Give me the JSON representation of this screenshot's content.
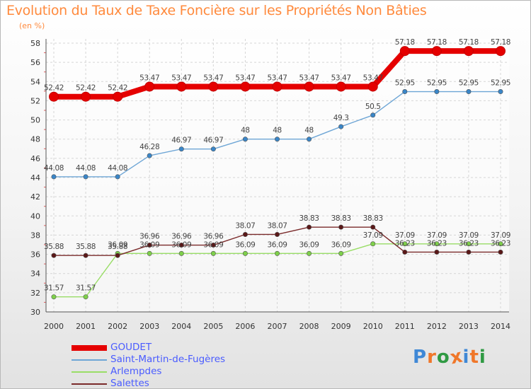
{
  "title": "Evolution du Taux de Taxe Foncière sur les Propriétés Non Bâties",
  "unit_label": "(en %)",
  "logo": {
    "text": "Proxiti",
    "colors": [
      "#3f88d6",
      "#f0772a",
      "#2f9a43",
      "#f0772a",
      "#3f88d6",
      "#f0772a",
      "#2f9a43"
    ]
  },
  "chart_data": {
    "type": "line",
    "title": "Evolution du Taux de Taxe Foncière sur les Propriétés Non Bâties",
    "ylabel": "(en %)",
    "xlabel": "",
    "x": [
      "2000",
      "2001",
      "2002",
      "2003",
      "2004",
      "2005",
      "2006",
      "2007",
      "2008",
      "2009",
      "2010",
      "2011",
      "2012",
      "2013",
      "2014"
    ],
    "ylim": [
      30,
      58
    ],
    "yticks": [
      "30",
      "32",
      "34",
      "36",
      "38",
      "40",
      "42",
      "44",
      "46",
      "48",
      "50",
      "52",
      "54",
      "56",
      "58"
    ],
    "grid": true,
    "series": [
      {
        "name": "GOUDET",
        "color": "#e50000",
        "values": [
          52.42,
          52.42,
          52.42,
          53.47,
          53.47,
          53.47,
          53.47,
          53.47,
          53.47,
          53.47,
          53.47,
          57.18,
          57.18,
          57.18,
          57.18
        ],
        "labels": [
          "52.42",
          "52.42",
          "52.42",
          "53.47",
          "53.47",
          "53.47",
          "53.47",
          "53.47",
          "53.47",
          "53.47",
          "53.47",
          "57.18",
          "57.18",
          "57.18",
          "57.18"
        ]
      },
      {
        "name": "Saint-Martin-de-Fugères",
        "color": "#6ea6d6",
        "values": [
          44.08,
          44.08,
          44.08,
          46.28,
          46.97,
          46.97,
          48,
          48,
          48,
          49.3,
          50.5,
          52.95,
          52.95,
          52.95,
          52.95
        ],
        "labels": [
          "44.08",
          "44.08",
          "44.08",
          "46.28",
          "46.97",
          "46.97",
          "48",
          "48",
          "48",
          "49.3",
          "50.5",
          "52.95",
          "52.95",
          "52.95",
          "52.95"
        ]
      },
      {
        "name": "Arlempdes",
        "color": "#99dd66",
        "values": [
          31.57,
          31.57,
          36.09,
          36.09,
          36.09,
          36.09,
          36.09,
          36.09,
          36.09,
          36.09,
          37.09,
          37.09,
          37.09,
          37.09,
          37.09
        ],
        "labels": [
          "31.57",
          "31.57",
          "36.09",
          "36.09",
          "36.09",
          "36.09",
          "36.09",
          "36.09",
          "36.09",
          "36.09",
          "37.09",
          "37.09",
          "37.09",
          "37.09",
          "37.09"
        ]
      },
      {
        "name": "Salettes",
        "color": "#7a2a2a",
        "values": [
          35.88,
          35.88,
          35.88,
          36.96,
          36.96,
          36.96,
          38.07,
          38.07,
          38.83,
          38.83,
          38.83,
          36.23,
          36.23,
          36.23,
          36.23
        ],
        "labels": [
          "35.88",
          "35.88",
          "35.88",
          "36.96",
          "36.96",
          "36.96",
          "38.07",
          "38.07",
          "38.83",
          "38.83",
          "38.83",
          "36.23",
          "36.23",
          "36.23",
          "36.23"
        ]
      }
    ],
    "legend_position": "bottom-left"
  }
}
